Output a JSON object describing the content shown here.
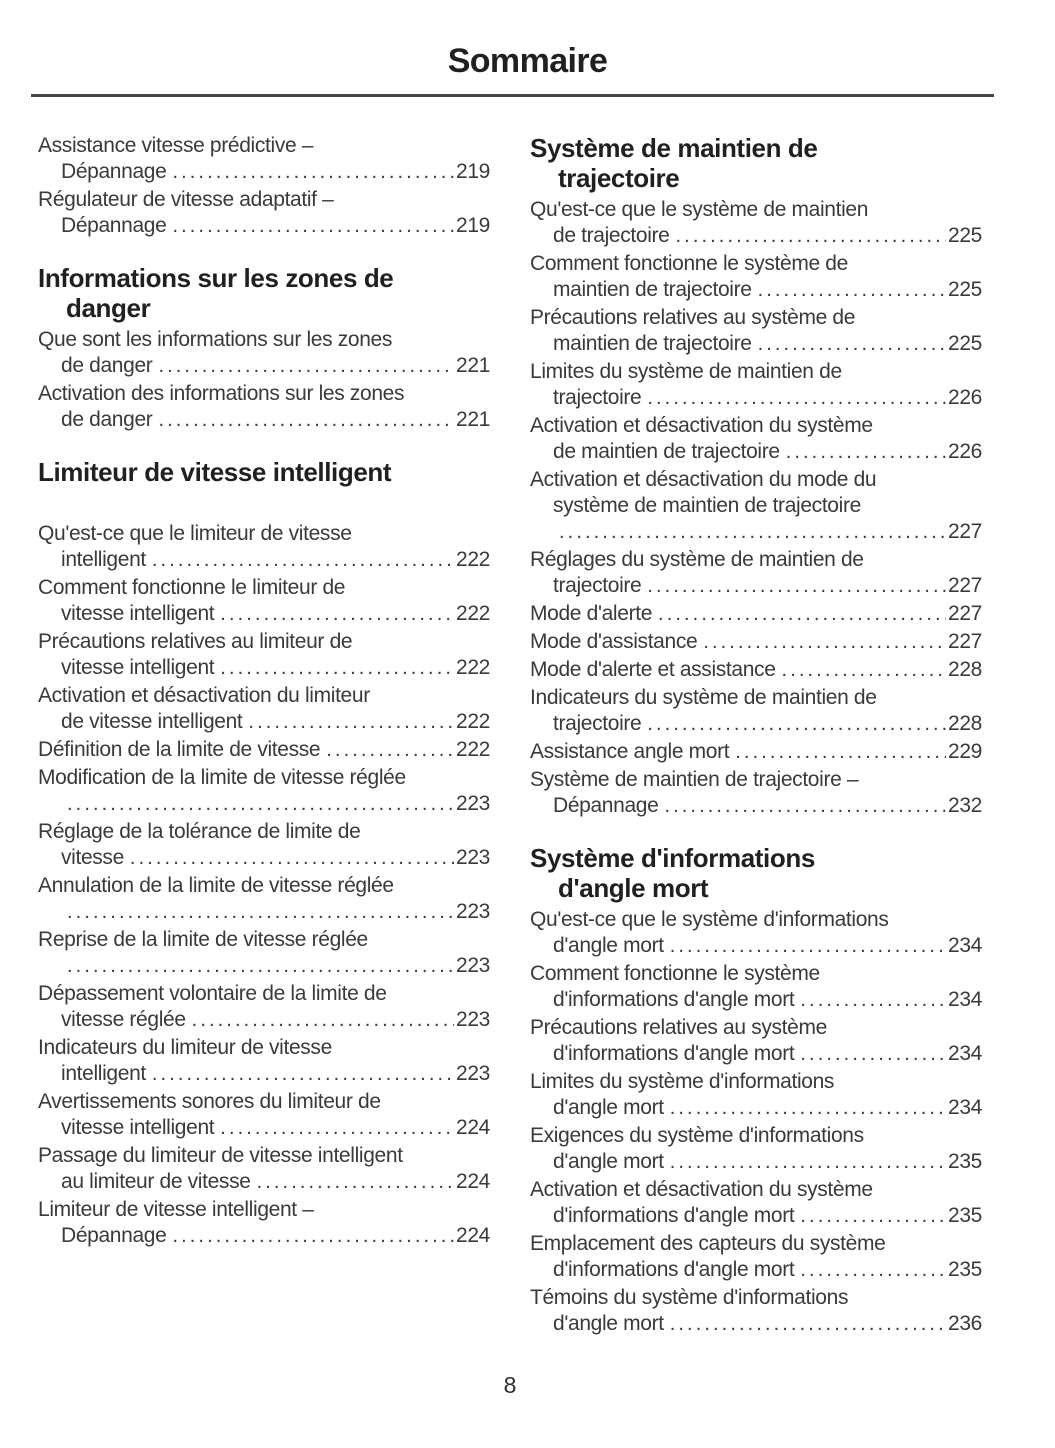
{
  "page": {
    "title": "Sommaire",
    "number": "8"
  },
  "columns": [
    {
      "blocks": [
        {
          "type": "entry",
          "lines": [
            "Assistance vitesse prédictive –",
            "Dépannage"
          ],
          "page": "219"
        },
        {
          "type": "entry",
          "lines": [
            "Régulateur de vitesse adaptatif –",
            "Dépannage"
          ],
          "page": "219"
        },
        {
          "type": "heading",
          "lines": [
            "Informations sur les zones de",
            "danger"
          ]
        },
        {
          "type": "entry",
          "lines": [
            "Que sont les informations sur les zones",
            "de danger"
          ],
          "page": "221"
        },
        {
          "type": "entry",
          "lines": [
            "Activation des informations sur les zones",
            "de danger"
          ],
          "page": "221"
        },
        {
          "type": "heading",
          "lines": [
            "Limiteur de vitesse intelligent"
          ]
        },
        {
          "type": "entry",
          "lines": [
            "Qu'est-ce que le limiteur de vitesse",
            "intelligent"
          ],
          "page": "222"
        },
        {
          "type": "entry",
          "lines": [
            "Comment fonctionne le limiteur de",
            "vitesse intelligent"
          ],
          "page": "222"
        },
        {
          "type": "entry",
          "lines": [
            "Précautions relatives au limiteur de",
            "vitesse intelligent"
          ],
          "page": "222"
        },
        {
          "type": "entry",
          "lines": [
            "Activation et désactivation du limiteur",
            "de vitesse intelligent"
          ],
          "page": "222"
        },
        {
          "type": "entry",
          "lines": [
            "Définition de la limite de vitesse"
          ],
          "page": "222"
        },
        {
          "type": "entry",
          "lines": [
            "Modification de la limite de vitesse réglée",
            ""
          ],
          "page": "223"
        },
        {
          "type": "entry",
          "lines": [
            "Réglage de la tolérance de limite de",
            "vitesse"
          ],
          "page": "223"
        },
        {
          "type": "entry",
          "lines": [
            "Annulation de la limite de vitesse réglée",
            ""
          ],
          "page": "223"
        },
        {
          "type": "entry",
          "lines": [
            "Reprise de la limite de vitesse réglée",
            ""
          ],
          "page": "223"
        },
        {
          "type": "entry",
          "lines": [
            "Dépassement volontaire de la limite de",
            "vitesse réglée"
          ],
          "page": "223"
        },
        {
          "type": "entry",
          "lines": [
            "Indicateurs du limiteur de vitesse",
            "intelligent"
          ],
          "page": "223"
        },
        {
          "type": "entry",
          "lines": [
            "Avertissements sonores du limiteur de",
            "vitesse intelligent"
          ],
          "page": "224"
        },
        {
          "type": "entry",
          "lines": [
            "Passage du limiteur de vitesse intelligent",
            "au limiteur de vitesse"
          ],
          "page": "224"
        },
        {
          "type": "entry",
          "lines": [
            "Limiteur de vitesse intelligent –",
            "Dépannage"
          ],
          "page": "224"
        }
      ]
    },
    {
      "blocks": [
        {
          "type": "heading",
          "lines": [
            "Système de maintien de",
            "trajectoire"
          ]
        },
        {
          "type": "entry",
          "lines": [
            "Qu'est-ce que le système de maintien",
            "de trajectoire"
          ],
          "page": "225"
        },
        {
          "type": "entry",
          "lines": [
            "Comment fonctionne le système de",
            "maintien de trajectoire"
          ],
          "page": "225"
        },
        {
          "type": "entry",
          "lines": [
            "Précautions relatives au système de",
            "maintien de trajectoire"
          ],
          "page": "225"
        },
        {
          "type": "entry",
          "lines": [
            "Limites du système de maintien de",
            "trajectoire"
          ],
          "page": "226"
        },
        {
          "type": "entry",
          "lines": [
            "Activation et désactivation du système",
            "de maintien de trajectoire"
          ],
          "page": "226"
        },
        {
          "type": "entry",
          "lines": [
            "Activation et désactivation du mode du",
            "système de maintien de trajectoire",
            ""
          ],
          "page": "227"
        },
        {
          "type": "entry",
          "lines": [
            "Réglages du système de maintien de",
            "trajectoire"
          ],
          "page": "227"
        },
        {
          "type": "entry",
          "lines": [
            "Mode d'alerte"
          ],
          "page": "227"
        },
        {
          "type": "entry",
          "lines": [
            "Mode d'assistance"
          ],
          "page": "227"
        },
        {
          "type": "entry",
          "lines": [
            "Mode d'alerte et assistance"
          ],
          "page": "228"
        },
        {
          "type": "entry",
          "lines": [
            "Indicateurs du système de maintien de",
            "trajectoire"
          ],
          "page": "228"
        },
        {
          "type": "entry",
          "lines": [
            "Assistance angle mort"
          ],
          "page": "229"
        },
        {
          "type": "entry",
          "lines": [
            "Système de maintien de trajectoire –",
            "Dépannage"
          ],
          "page": "232"
        },
        {
          "type": "heading",
          "lines": [
            "Système d'informations",
            "d'angle mort"
          ]
        },
        {
          "type": "entry",
          "lines": [
            "Qu'est-ce que le système d'informations",
            "d'angle mort"
          ],
          "page": "234"
        },
        {
          "type": "entry",
          "lines": [
            "Comment fonctionne le système",
            "d'informations d'angle mort"
          ],
          "page": "234"
        },
        {
          "type": "entry",
          "lines": [
            "Précautions relatives au système",
            "d'informations d'angle mort"
          ],
          "page": "234"
        },
        {
          "type": "entry",
          "lines": [
            "Limites du système d'informations",
            "d'angle mort"
          ],
          "page": "234"
        },
        {
          "type": "entry",
          "lines": [
            "Exigences du système d'informations",
            "d'angle mort"
          ],
          "page": "235"
        },
        {
          "type": "entry",
          "lines": [
            "Activation et désactivation du système",
            "d'informations d'angle mort"
          ],
          "page": "235"
        },
        {
          "type": "entry",
          "lines": [
            "Emplacement des capteurs du système",
            "d'informations d'angle mort"
          ],
          "page": "235"
        },
        {
          "type": "entry",
          "lines": [
            "Témoins du système d'informations",
            "d'angle mort"
          ],
          "page": "236"
        }
      ]
    }
  ]
}
